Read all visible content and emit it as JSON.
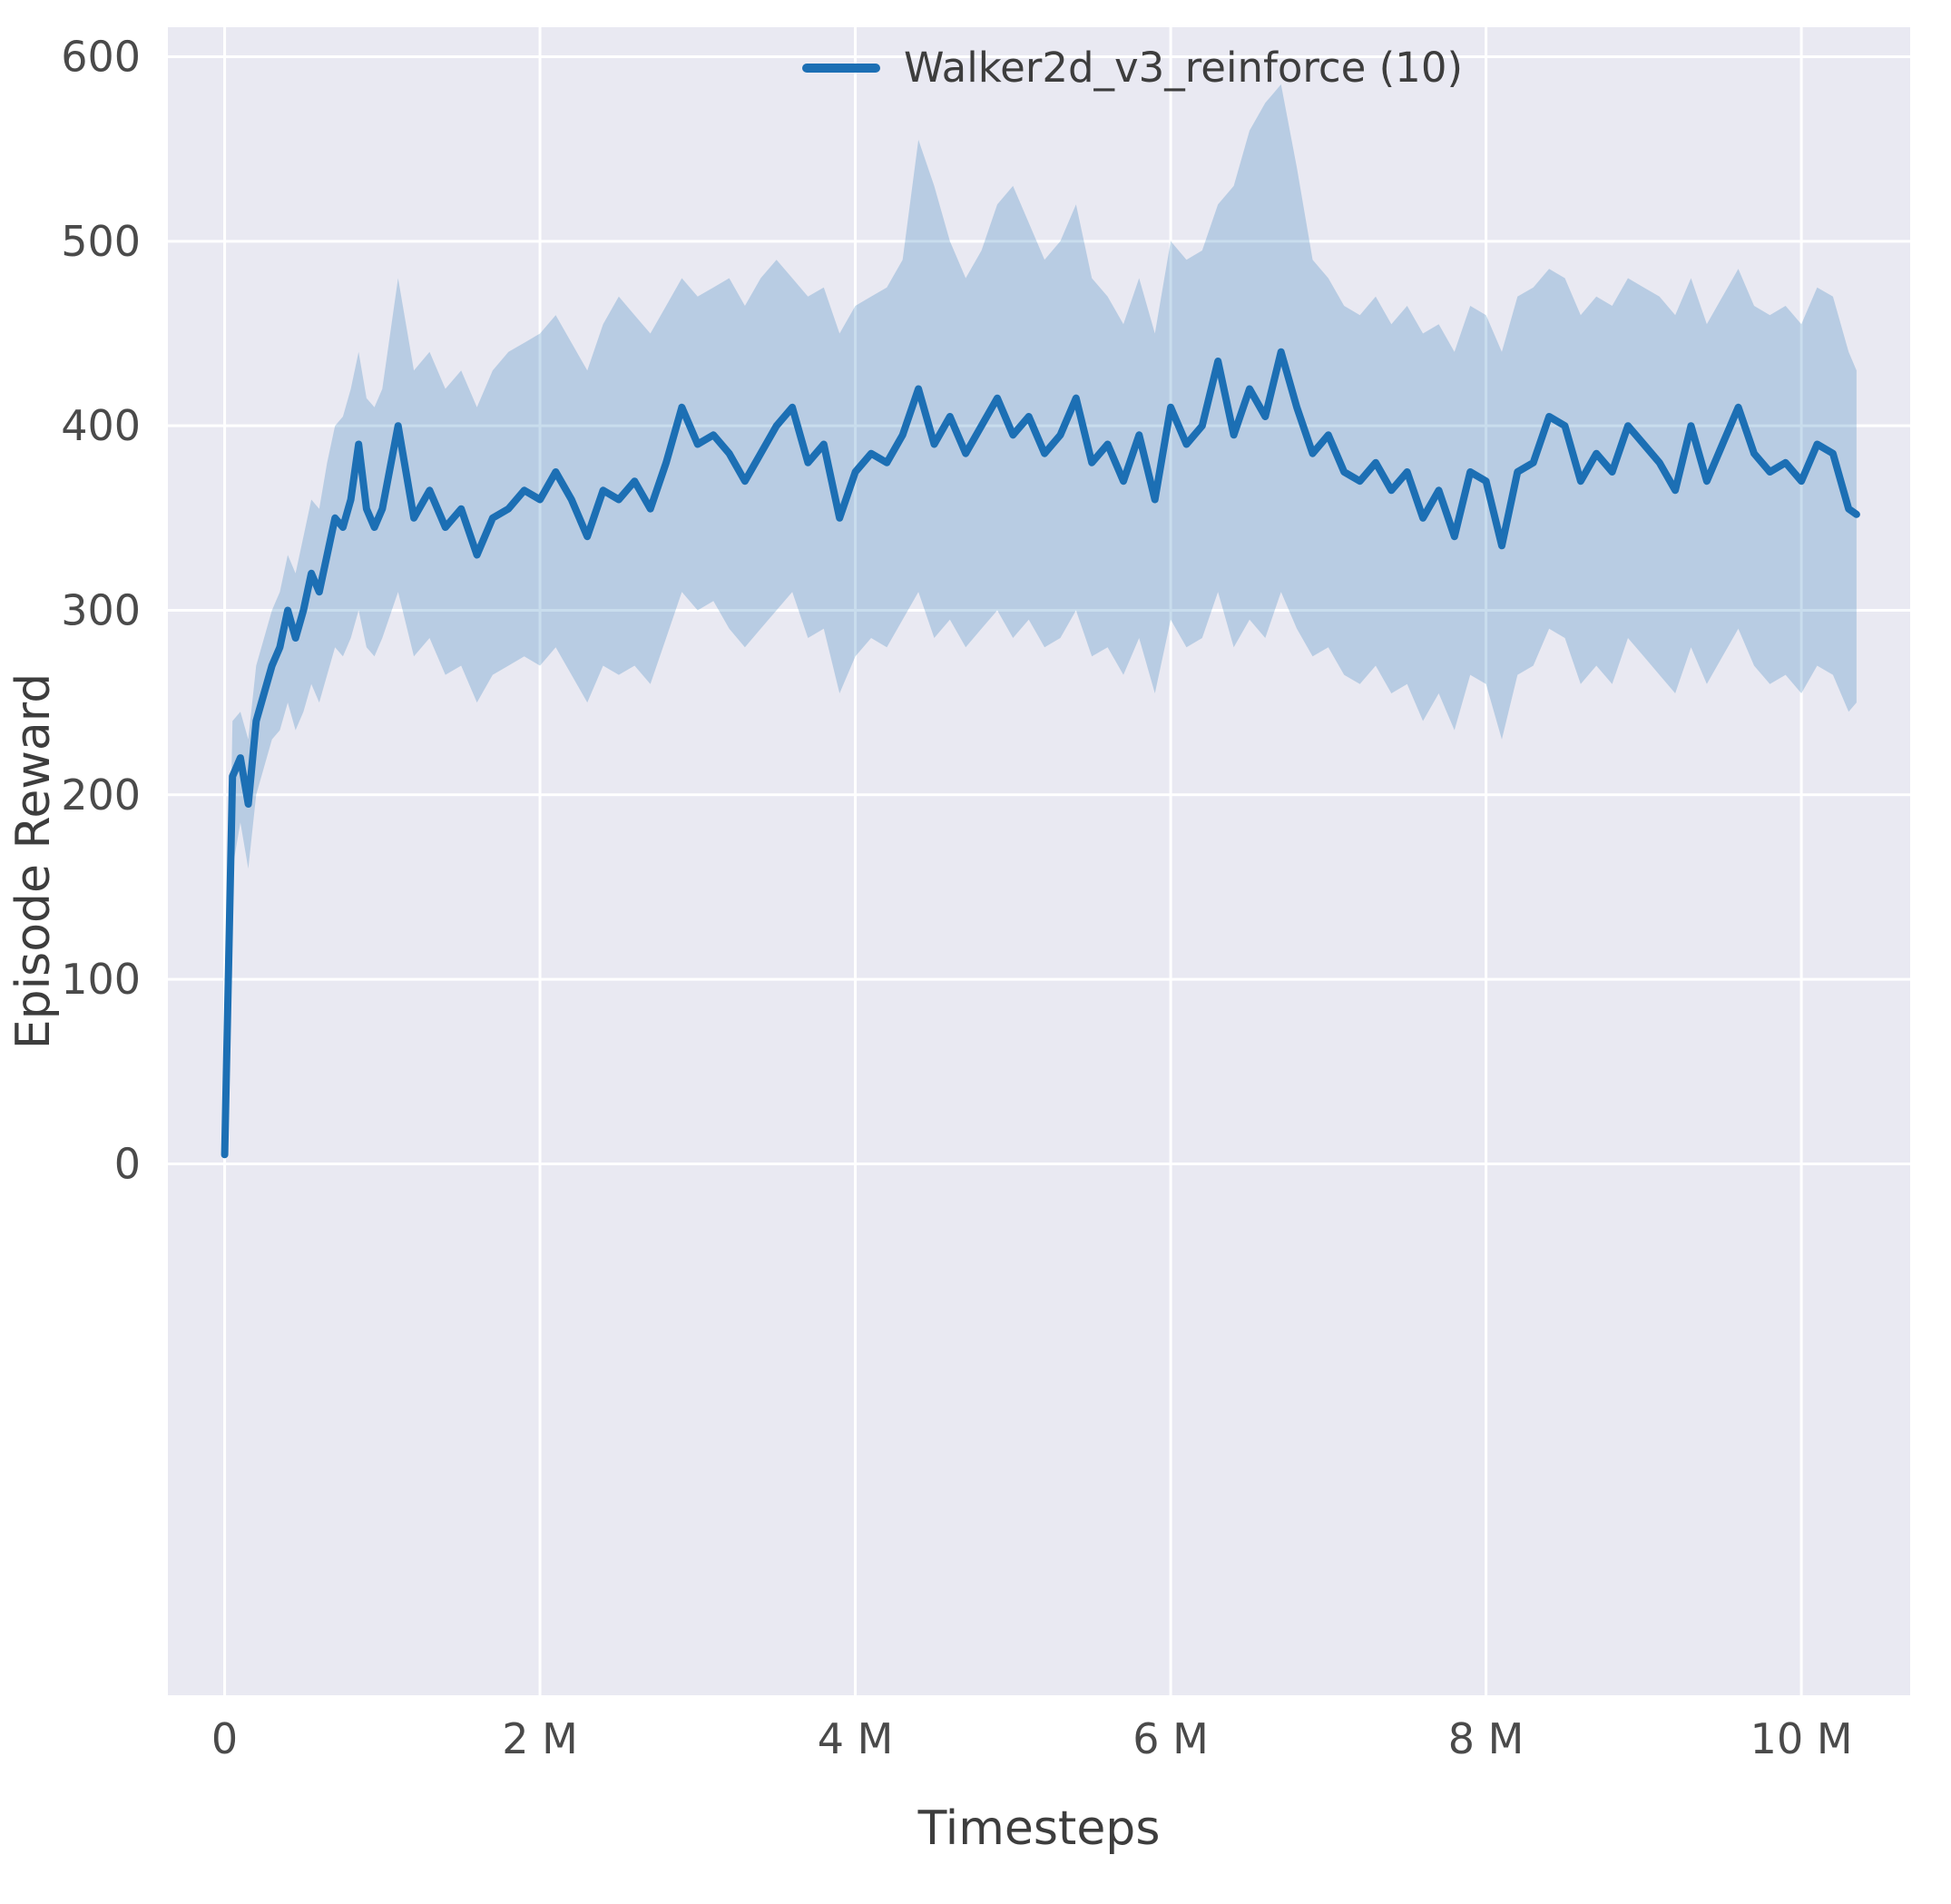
{
  "figure": {
    "background": "#ffffff",
    "axes_background": "#e9e9f2",
    "grid_color": "#ffffff",
    "tick_color": "#4a4a4a",
    "label_color": "#3d3d3d"
  },
  "chart_data": {
    "type": "line",
    "title": "",
    "xlabel": "Timesteps",
    "ylabel": "Episode Reward",
    "grid": true,
    "legend_position": "upper center-right, inside axes, no frame",
    "legend": [
      {
        "label": "Walker2d_v3_reinforce (10)",
        "color": "#1c6fb4"
      }
    ],
    "x_units": "millions of timesteps",
    "xlim": [
      -0.36,
      10.69
    ],
    "ylim": [
      -288,
      616
    ],
    "xticks": {
      "values": [
        0,
        2,
        4,
        6,
        8,
        10
      ],
      "labels": [
        "0",
        "2 M",
        "4 M",
        "6 M",
        "8 M",
        "10 M"
      ]
    },
    "yticks": {
      "values": [
        0,
        100,
        200,
        300,
        400,
        500,
        600
      ],
      "labels": [
        "0",
        "100",
        "200",
        "300",
        "400",
        "500",
        "600"
      ]
    },
    "series": [
      {
        "name": "Walker2d_v3_reinforce (10)",
        "color": "#1c6fb4",
        "band_color": "#1c6fb4",
        "band_opacity": 0.24,
        "x": [
          0,
          0.05,
          0.1,
          0.15,
          0.2,
          0.25,
          0.3,
          0.35,
          0.4,
          0.45,
          0.5,
          0.55,
          0.6,
          0.65,
          0.7,
          0.75,
          0.8,
          0.85,
          0.9,
          0.95,
          1.0,
          1.1,
          1.2,
          1.3,
          1.4,
          1.5,
          1.6,
          1.7,
          1.8,
          1.9,
          2.0,
          2.1,
          2.2,
          2.3,
          2.4,
          2.5,
          2.6,
          2.7,
          2.8,
          2.9,
          3.0,
          3.1,
          3.2,
          3.3,
          3.4,
          3.5,
          3.6,
          3.7,
          3.8,
          3.9,
          4.0,
          4.1,
          4.2,
          4.3,
          4.4,
          4.5,
          4.6,
          4.7,
          4.8,
          4.9,
          5.0,
          5.1,
          5.2,
          5.3,
          5.4,
          5.5,
          5.6,
          5.7,
          5.8,
          5.9,
          6.0,
          6.1,
          6.2,
          6.3,
          6.4,
          6.5,
          6.6,
          6.7,
          6.8,
          6.9,
          7.0,
          7.1,
          7.2,
          7.3,
          7.4,
          7.5,
          7.6,
          7.7,
          7.8,
          7.9,
          8.0,
          8.1,
          8.2,
          8.3,
          8.4,
          8.5,
          8.6,
          8.7,
          8.8,
          8.9,
          9.0,
          9.1,
          9.2,
          9.3,
          9.4,
          9.5,
          9.6,
          9.7,
          9.8,
          9.9,
          10.0,
          10.1,
          10.2,
          10.3,
          10.35
        ],
        "mean": [
          5,
          210,
          220,
          195,
          240,
          255,
          270,
          280,
          300,
          285,
          300,
          320,
          310,
          330,
          350,
          345,
          360,
          390,
          355,
          345,
          355,
          400,
          350,
          365,
          345,
          355,
          330,
          350,
          355,
          365,
          360,
          375,
          360,
          340,
          365,
          360,
          370,
          355,
          380,
          410,
          390,
          395,
          385,
          370,
          385,
          400,
          410,
          380,
          390,
          350,
          375,
          385,
          380,
          395,
          420,
          390,
          405,
          385,
          400,
          415,
          395,
          405,
          385,
          395,
          415,
          380,
          390,
          370,
          395,
          360,
          410,
          390,
          400,
          435,
          395,
          420,
          405,
          440,
          410,
          385,
          395,
          375,
          370,
          380,
          365,
          375,
          350,
          365,
          340,
          375,
          370,
          335,
          375,
          380,
          405,
          400,
          370,
          385,
          375,
          400,
          390,
          380,
          365,
          400,
          370,
          390,
          410,
          385,
          375,
          380,
          370,
          390,
          385,
          355,
          352
        ],
        "band_lower": [
          4,
          160,
          185,
          160,
          200,
          215,
          230,
          235,
          250,
          235,
          245,
          260,
          250,
          265,
          280,
          275,
          285,
          300,
          280,
          275,
          285,
          310,
          275,
          285,
          265,
          270,
          250,
          265,
          270,
          275,
          270,
          280,
          265,
          250,
          270,
          265,
          270,
          260,
          285,
          310,
          300,
          305,
          290,
          280,
          290,
          300,
          310,
          285,
          290,
          255,
          275,
          285,
          280,
          295,
          310,
          285,
          295,
          280,
          290,
          300,
          285,
          295,
          280,
          285,
          300,
          275,
          280,
          265,
          285,
          255,
          295,
          280,
          285,
          310,
          280,
          295,
          285,
          310,
          290,
          275,
          280,
          265,
          260,
          270,
          255,
          260,
          240,
          255,
          235,
          265,
          260,
          230,
          265,
          270,
          290,
          285,
          260,
          270,
          260,
          285,
          275,
          265,
          255,
          280,
          260,
          275,
          290,
          270,
          260,
          265,
          255,
          270,
          265,
          245,
          250
        ],
        "band_upper": [
          8,
          240,
          245,
          230,
          270,
          285,
          300,
          310,
          330,
          320,
          340,
          360,
          355,
          380,
          400,
          405,
          420,
          440,
          415,
          410,
          420,
          480,
          430,
          440,
          420,
          430,
          410,
          430,
          440,
          445,
          450,
          460,
          445,
          430,
          455,
          470,
          460,
          450,
          465,
          480,
          470,
          475,
          480,
          465,
          480,
          490,
          480,
          470,
          475,
          450,
          465,
          470,
          475,
          490,
          555,
          530,
          500,
          480,
          495,
          520,
          530,
          510,
          490,
          500,
          520,
          480,
          470,
          455,
          480,
          450,
          500,
          490,
          495,
          520,
          530,
          560,
          575,
          585,
          540,
          490,
          480,
          465,
          460,
          470,
          455,
          465,
          450,
          455,
          440,
          465,
          460,
          440,
          470,
          475,
          485,
          480,
          460,
          470,
          465,
          480,
          475,
          470,
          460,
          480,
          455,
          470,
          485,
          465,
          460,
          465,
          455,
          475,
          470,
          440,
          430
        ]
      }
    ]
  }
}
